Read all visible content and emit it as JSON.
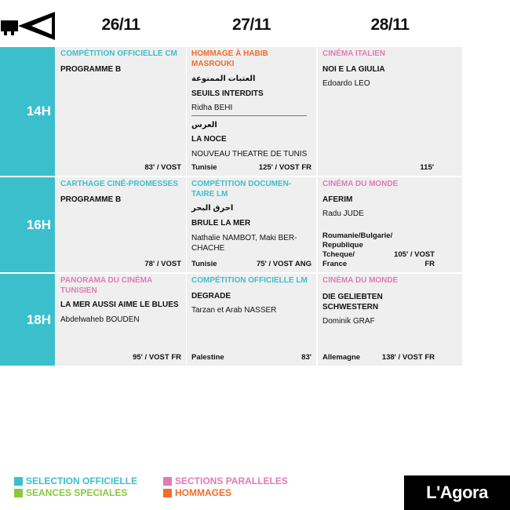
{
  "dates": [
    "26/11",
    "27/11",
    "28/11"
  ],
  "times": [
    "14H",
    "16H",
    "18H"
  ],
  "cells": {
    "r1c1": {
      "category": "COMPÉTITION OFFICIELLE CM",
      "title": "PROGRAMME B",
      "foot_right": "83' / VOST"
    },
    "r1c2": {
      "category": "HOMMAGE À HABIB MASROUKI",
      "arabic1": "العتبات الممنوعة",
      "title1": "SEUILS INTERDITS",
      "director1": "Ridha BEHI",
      "arabic2": "العرس",
      "title2": "LA NOCE",
      "detail2": "NOUVEAU THEATRE DE TUNIS",
      "foot_left": "Tunisie",
      "foot_right": "125' / VOST FR"
    },
    "r1c3": {
      "category": "CINÉMA ITALIEN",
      "title": "NOI E LA GIULIA",
      "director": "Edoardo LEO",
      "foot_right": "115'"
    },
    "r2c1": {
      "category": "CARTHAGE CINÉ-PROMESSES",
      "title": "PROGRAMME B",
      "foot_right": "78' / VOST"
    },
    "r2c2": {
      "category_l1": "COMPÉTITION DOCUMEN-",
      "category_l2": "TAIRE LM",
      "arabic": "احرق البحر",
      "title": "BRULE LA MER",
      "director_l1": "Nathalie NAMBOT, Maki BER-",
      "director_l2": "CHACHE",
      "foot_left": "Tunisie",
      "foot_right": "75' / VOST ANG"
    },
    "r2c3": {
      "category": "CINÉMA DU MONDE",
      "title": "AFERIM",
      "director": "Radu JUDE",
      "country_l1": "Roumanie/Bulgarie/",
      "country_l2": "Republique Tcheque/",
      "country_l3": "France",
      "foot_right": "105' / VOST FR"
    },
    "r3c1": {
      "category_l1": "PANORAMA DU CINÉMA",
      "category_l2": "TUNISIEN",
      "title": "LA MER AUSSI AIME LE BLUES",
      "director": "Abdelwaheb BOUDEN",
      "foot_right": "95' / VOST FR"
    },
    "r3c2": {
      "category": "COMPÉTITION OFFICIELLE LM",
      "title": "DEGRADE",
      "director": "Tarzan et Arab NASSER",
      "foot_left": "Palestine",
      "foot_right": "83'"
    },
    "r3c3": {
      "category": "CINÉMA DU MONDE",
      "title_l1": "DIE GELIEBTEN",
      "title_l2": "SCHWESTERN",
      "director": "Dominik GRAF",
      "foot_left": "Allemagne",
      "foot_right": "138' / VOST FR"
    }
  },
  "legend": [
    {
      "label": "SELECTION OFFICIELLE",
      "color": "#3cbfcc"
    },
    {
      "label": "SEANCES SPECIALES",
      "color": "#8cc63f"
    },
    {
      "label": "SECTIONS PARALLELES",
      "color": "#e27bb5"
    },
    {
      "label": "HOMMAGES",
      "color": "#f26c2a"
    }
  ],
  "venue": "L'Agora",
  "icons": {
    "projector": "projector-icon"
  }
}
